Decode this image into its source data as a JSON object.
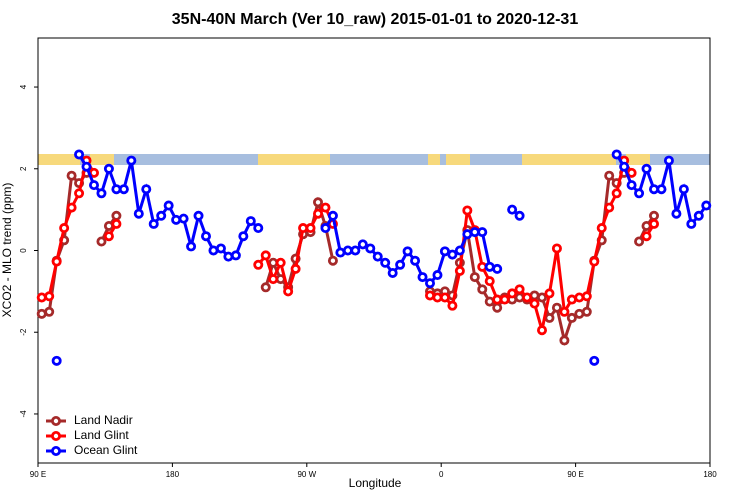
{
  "chart_data": {
    "type": "line",
    "title": "35N-40N March (Ver 10_raw)   2015-01-01 to 2020-12-31",
    "x_label": "Longitude",
    "y_label": "XCO2 - MLO trend (ppm)",
    "xlim": [
      90,
      540
    ],
    "ylim": [
      -5.2,
      5.2
    ],
    "xticks": [
      {
        "value": 90,
        "label": "90 E"
      },
      180,
      {
        "value": 270,
        "label": "90 W"
      },
      {
        "value": 360,
        "label": "0"
      },
      {
        "value": 450,
        "label": "90 E"
      },
      {
        "value": 540,
        "label": "180"
      }
    ],
    "yticks": [
      -4,
      -2,
      0,
      2,
      4
    ],
    "legend": "bottom-left",
    "x": [
      92.5,
      97.5,
      102.5,
      107.5,
      112.5,
      117.5,
      122.5,
      127.5,
      132.5,
      137.5,
      142.5,
      147.5,
      152.5,
      157.5,
      162.5,
      167.5,
      172.5,
      177.5,
      182.5,
      187.5,
      192.5,
      197.5,
      202.5,
      207.5,
      212.5,
      217.5,
      222.5,
      227.5,
      232.5,
      237.5,
      242.5,
      247.5,
      252.5,
      257.5,
      262.5,
      267.5,
      272.5,
      277.5,
      282.5,
      287.5,
      292.5,
      297.5,
      302.5,
      307.5,
      312.5,
      317.5,
      322.5,
      327.5,
      332.5,
      337.5,
      342.5,
      347.5,
      352.5,
      357.5,
      362.5,
      367.5,
      372.5,
      377.5,
      382.5,
      387.5,
      392.5,
      397.5,
      402.5,
      407.5,
      412.5,
      417.5,
      422.5,
      427.5,
      432.5,
      437.5,
      442.5,
      447.5,
      452.5,
      457.5,
      462.5,
      467.5,
      472.5,
      477.5,
      482.5,
      487.5,
      492.5,
      497.5,
      502.5,
      507.5,
      512.5,
      517.5,
      522.5,
      527.5,
      532.5,
      537.5
    ],
    "series": [
      {
        "name": "Land Nadir",
        "color": "#a52a2a",
        "values": [
          -1.55,
          -1.5,
          -0.25,
          0.25,
          1.83,
          1.65,
          1.9,
          null,
          0.22,
          0.6,
          0.85,
          null,
          null,
          null,
          null,
          null,
          null,
          null,
          null,
          null,
          null,
          null,
          null,
          null,
          null,
          null,
          null,
          null,
          null,
          null,
          -0.9,
          -0.3,
          -0.7,
          -0.9,
          -0.2,
          0.4,
          0.45,
          1.18,
          0.6,
          -0.25,
          null,
          null,
          null,
          null,
          null,
          null,
          null,
          null,
          null,
          null,
          null,
          null,
          -1.0,
          -1.05,
          -1.0,
          -1.1,
          -0.3,
          0.5,
          -0.65,
          -0.95,
          -1.25,
          -1.4,
          -1.15,
          -1.2,
          -1.15,
          -1.2,
          -1.1,
          -1.15,
          -1.65,
          -1.4,
          -2.2,
          -1.65,
          -1.55,
          -1.5,
          -0.25,
          0.25,
          1.83,
          1.65,
          1.9,
          null,
          0.22,
          0.6,
          0.85,
          null,
          null,
          null,
          null,
          null,
          null,
          null
        ]
      },
      {
        "name": "Land Glint",
        "color": "#ff0000",
        "values": [
          -1.15,
          -1.12,
          -0.27,
          0.55,
          1.05,
          1.4,
          2.2,
          1.9,
          null,
          0.35,
          0.65,
          null,
          null,
          null,
          null,
          null,
          null,
          null,
          null,
          null,
          null,
          null,
          null,
          null,
          null,
          null,
          null,
          null,
          null,
          -0.35,
          -0.12,
          -0.7,
          -0.3,
          -1.0,
          -0.45,
          0.55,
          0.55,
          0.9,
          1.05,
          0.65,
          null,
          null,
          null,
          null,
          null,
          null,
          null,
          null,
          null,
          null,
          null,
          null,
          -1.1,
          -1.15,
          -1.15,
          -1.35,
          -0.5,
          0.98,
          0.5,
          -0.4,
          -0.75,
          -1.2,
          -1.2,
          -1.05,
          -0.95,
          -1.15,
          -1.3,
          -1.95,
          -1.05,
          0.05,
          -1.5,
          -1.2,
          -1.15,
          -1.12,
          -0.27,
          0.55,
          1.05,
          1.4,
          2.2,
          1.9,
          null,
          0.35,
          0.65,
          null,
          null,
          null,
          null,
          null,
          null,
          null
        ]
      },
      {
        "name": "Ocean Glint",
        "color": "#0000ff",
        "values": [
          null,
          null,
          -2.7,
          null,
          null,
          2.35,
          2.05,
          1.6,
          1.4,
          2.0,
          1.5,
          1.5,
          2.2,
          0.9,
          1.5,
          0.65,
          0.85,
          1.1,
          0.75,
          0.78,
          0.1,
          0.85,
          0.35,
          0.0,
          0.05,
          -0.15,
          -0.12,
          0.35,
          0.72,
          0.55,
          null,
          null,
          null,
          null,
          null,
          null,
          null,
          null,
          0.55,
          0.85,
          -0.05,
          0.0,
          0.0,
          0.15,
          0.05,
          -0.15,
          -0.3,
          -0.55,
          -0.35,
          -0.02,
          -0.25,
          -0.65,
          -0.8,
          -0.6,
          -0.02,
          -0.1,
          0.0,
          0.4,
          0.45,
          0.45,
          -0.4,
          -0.45,
          null,
          1.0,
          0.85,
          null,
          null,
          null,
          null,
          null,
          null,
          null,
          null,
          null,
          -2.7,
          null,
          null,
          2.35,
          2.05,
          1.6,
          1.4,
          2.0,
          1.5,
          1.5,
          2.2,
          0.9,
          1.5,
          0.65,
          0.85,
          1.1
        ]
      }
    ]
  }
}
